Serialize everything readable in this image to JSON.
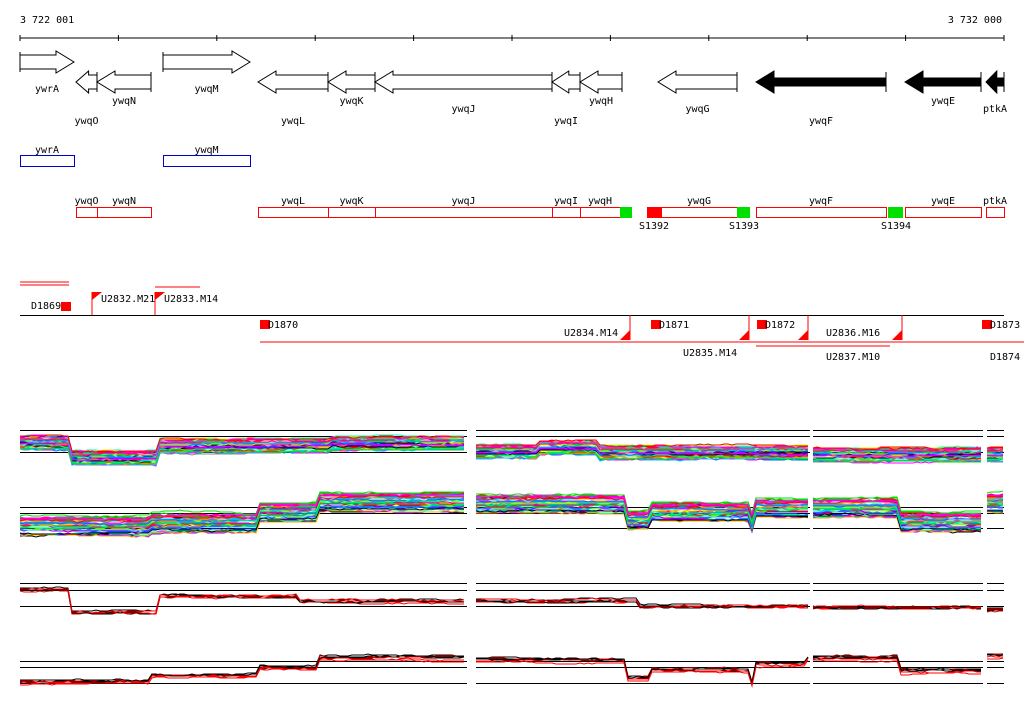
{
  "ruler": {
    "start_label": "3 722 001",
    "end_label": "3 732 000"
  },
  "genes": [
    {
      "name": "ywrA",
      "strand": "+",
      "fill": "open"
    },
    {
      "name": "ywqO",
      "strand": "-",
      "fill": "open"
    },
    {
      "name": "ywqN",
      "strand": "-",
      "fill": "open"
    },
    {
      "name": "ywqM",
      "strand": "+",
      "fill": "open"
    },
    {
      "name": "ywqL",
      "strand": "-",
      "fill": "open"
    },
    {
      "name": "ywqK",
      "strand": "-",
      "fill": "open"
    },
    {
      "name": "ywqJ",
      "strand": "-",
      "fill": "open"
    },
    {
      "name": "ywqI",
      "strand": "-",
      "fill": "open"
    },
    {
      "name": "ywqH",
      "strand": "-",
      "fill": "open"
    },
    {
      "name": "ywqG",
      "strand": "-",
      "fill": "open"
    },
    {
      "name": "ywqF",
      "strand": "-",
      "fill": "solid"
    },
    {
      "name": "ywqE",
      "strand": "-",
      "fill": "solid"
    },
    {
      "name": "ptkA",
      "strand": "-",
      "fill": "solid"
    }
  ],
  "forward_boxes": [
    "ywrA",
    "ywqM"
  ],
  "reverse_boxes": [
    "ywqO",
    "ywqN",
    "ywqL",
    "ywqK",
    "ywqJ",
    "ywqI",
    "ywqH",
    "ywqG",
    "ywqF",
    "ywqE",
    "ptkA"
  ],
  "sites": [
    {
      "label": "S1392",
      "color": "#ff0000"
    },
    {
      "label": "S1393",
      "color": "#00e000"
    },
    {
      "label": "S1394",
      "color": "#00e000"
    },
    {
      "label": "",
      "color": "#00e000"
    }
  ],
  "features": {
    "d1869": "D1869",
    "u2832": "U2832.M21",
    "u2833": "U2833.M14",
    "d1870": "D1870",
    "u2834": "U2834.M14",
    "d1871": "D1871",
    "u2835": "U2835.M14",
    "d1872": "D1872",
    "u2836": "U2836.M16",
    "u2837": "U2837.M10",
    "d1873": "D1873",
    "d1874": "D1874"
  },
  "colors": {
    "gene_box": "#ff0000",
    "forward_box": "#0000cc",
    "feature": "#ff0000",
    "palette": [
      "#ff0000",
      "#00c0ff",
      "#ff00ff",
      "#00e000",
      "#888888",
      "#ffa500",
      "#0066ff",
      "#c8ff00",
      "#000000",
      "#8000ff",
      "#00ffa0",
      "#ff0080"
    ]
  }
}
